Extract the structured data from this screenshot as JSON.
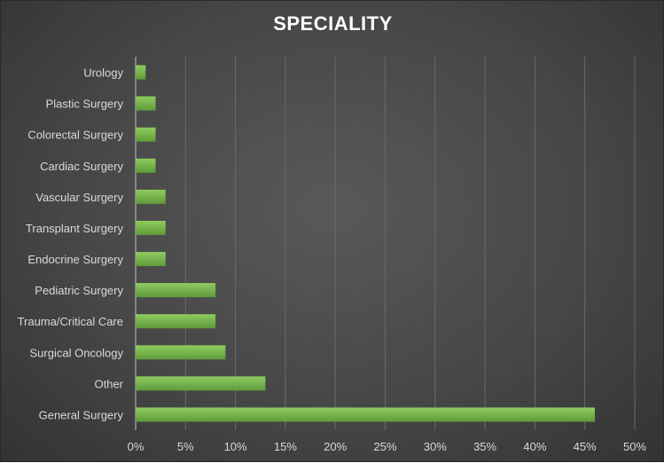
{
  "chart_data": {
    "type": "bar",
    "orientation": "horizontal",
    "title": "SPECIALITY",
    "categories": [
      "Urology",
      "Plastic Surgery",
      "Colorectal Surgery",
      "Cardiac Surgery",
      "Vascular Surgery",
      "Transplant Surgery",
      "Endocrine Surgery",
      "Pediatric Surgery",
      "Trauma/Critical Care",
      "Surgical Oncology",
      "Other",
      "General Surgery"
    ],
    "values": [
      1,
      2,
      2,
      2,
      3,
      3,
      3,
      8,
      8,
      9,
      13,
      46
    ],
    "xlim": [
      0,
      50
    ],
    "xticks": [
      "0%",
      "5%",
      "10%",
      "15%",
      "20%",
      "25%",
      "30%",
      "35%",
      "40%",
      "45%",
      "50%"
    ],
    "grid": "vertical",
    "bar_color": "#70ad47",
    "bar_gradient_top": "#8fcc5f",
    "bar_gradient_bottom": "#5f9a3a"
  }
}
